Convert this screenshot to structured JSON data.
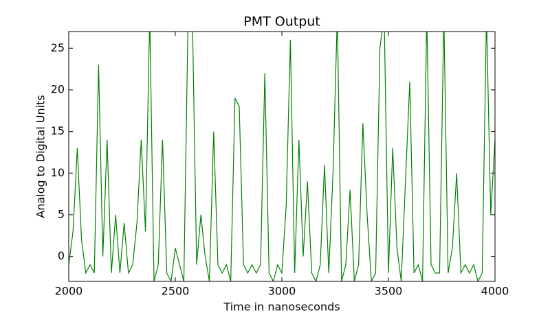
{
  "chart_data": {
    "type": "line",
    "title": "PMT Output",
    "x_label": "Time in nanoseconds",
    "y_label": "Analog to Digital Units",
    "x": [
      2000,
      2020,
      2040,
      2060,
      2080,
      2100,
      2120,
      2140,
      2160,
      2180,
      2200,
      2220,
      2240,
      2260,
      2280,
      2300,
      2320,
      2340,
      2360,
      2380,
      2400,
      2420,
      2440,
      2460,
      2480,
      2500,
      2520,
      2540,
      2560,
      2580,
      2600,
      2620,
      2640,
      2660,
      2680,
      2700,
      2720,
      2740,
      2760,
      2780,
      2800,
      2820,
      2840,
      2860,
      2880,
      2900,
      2920,
      2940,
      2960,
      2980,
      3000,
      3020,
      3040,
      3060,
      3080,
      3100,
      3120,
      3140,
      3160,
      3180,
      3200,
      3220,
      3240,
      3260,
      3280,
      3300,
      3320,
      3340,
      3360,
      3380,
      3400,
      3420,
      3440,
      3460,
      3480,
      3500,
      3520,
      3540,
      3560,
      3580,
      3600,
      3620,
      3640,
      3660,
      3680,
      3700,
      3720,
      3740,
      3760,
      3780,
      3800,
      3820,
      3840,
      3860,
      3880,
      3900,
      3920,
      3940,
      3960,
      3980,
      4000
    ],
    "values": [
      -1,
      3,
      13,
      2,
      -2,
      -1,
      -2,
      23,
      0,
      14,
      -2,
      5,
      -2,
      4,
      -2,
      -1,
      4,
      14,
      3,
      29,
      -3,
      -1,
      14,
      -2,
      -3,
      1,
      -1,
      -3,
      29,
      29,
      -1,
      5,
      0,
      -3,
      15,
      -1,
      -2,
      -1,
      -3,
      19,
      18,
      -1,
      -2,
      -1,
      -2,
      -1,
      22,
      -2,
      -3,
      -1,
      -2,
      6,
      26,
      -2,
      14,
      0,
      9,
      -2,
      -3,
      -1,
      11,
      -2,
      10,
      29,
      -3,
      -1,
      8,
      -3,
      -1,
      16,
      5,
      -3,
      -2,
      25,
      29,
      -2,
      13,
      1,
      -3,
      9,
      21,
      -2,
      -1,
      -3,
      29,
      -1,
      -2,
      -2,
      29,
      -2,
      1,
      10,
      -2,
      -1,
      -2,
      -1,
      -3,
      -2,
      29,
      5,
      14
    ],
    "color": "#008000",
    "xlim": [
      2000,
      4000
    ],
    "xticks": [
      2000,
      2500,
      3000,
      3500,
      4000
    ],
    "ylim": [
      -3,
      27
    ],
    "yticks": [
      0,
      5,
      10,
      15,
      20,
      25
    ]
  }
}
